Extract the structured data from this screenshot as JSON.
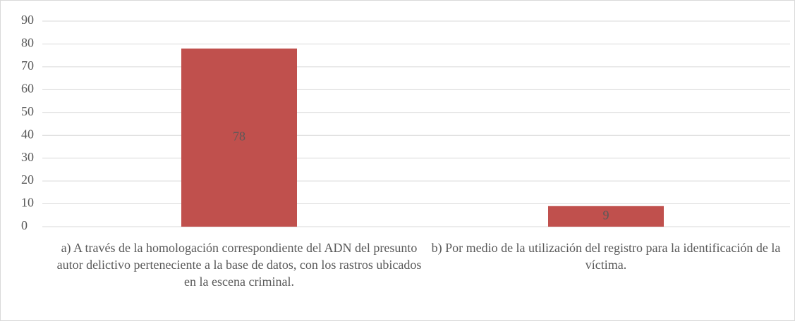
{
  "chart_data": {
    "type": "bar",
    "categories": [
      "a) A través de la homologación correspondiente del ADN del presunto autor delictivo perteneciente a la base de datos, con los rastros ubicados en la escena criminal.",
      "b) Por medio de la utilización del registro para la identificación de la víctima."
    ],
    "values": [
      78,
      9
    ],
    "color": "#c0504d",
    "ylim": [
      0,
      90
    ],
    "yticks": [
      0,
      10,
      20,
      30,
      40,
      50,
      60,
      70,
      80,
      90
    ],
    "grid": true
  }
}
